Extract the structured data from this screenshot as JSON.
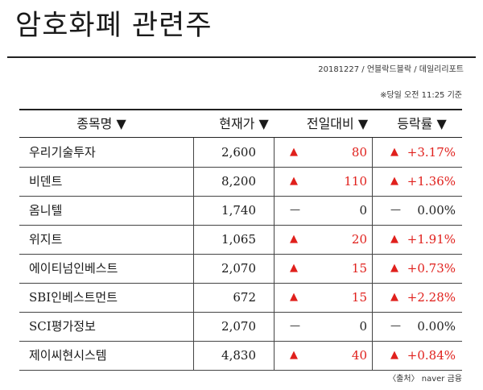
{
  "title": "암호화폐 관련주",
  "byline": "20181227 / 언블락드블락 / 데일리리포트",
  "timestamp": "※당일 오전 11:25 기준",
  "columns": [
    "종목명 ▼",
    "현재가 ▼",
    "전일대비 ▼",
    "등락률 ▼"
  ],
  "colors": {
    "up": "#e0201c",
    "flat": "#222222"
  },
  "rows": [
    {
      "name": "우리기술투자",
      "price": "2,600",
      "dir": "up",
      "arrow": "▲",
      "change": "80",
      "rate": "+3.17%"
    },
    {
      "name": "비덴트",
      "price": "8,200",
      "dir": "up",
      "arrow": "▲",
      "change": "110",
      "rate": "+1.36%"
    },
    {
      "name": "옴니텔",
      "price": "1,740",
      "dir": "flat",
      "arrow": "—",
      "change": "0",
      "rate": "0.00%"
    },
    {
      "name": "위지트",
      "price": "1,065",
      "dir": "up",
      "arrow": "▲",
      "change": "20",
      "rate": "+1.91%"
    },
    {
      "name": "에이티넘인베스트",
      "price": "2,070",
      "dir": "up",
      "arrow": "▲",
      "change": "15",
      "rate": "+0.73%"
    },
    {
      "name": "SBI인베스트먼트",
      "price": "672",
      "dir": "up",
      "arrow": "▲",
      "change": "15",
      "rate": "+2.28%"
    },
    {
      "name": "SCI평가정보",
      "price": "2,070",
      "dir": "flat",
      "arrow": "—",
      "change": "0",
      "rate": "0.00%"
    },
    {
      "name": "제이씨현시스템",
      "price": "4,830",
      "dir": "up",
      "arrow": "▲",
      "change": "40",
      "rate": "+0.84%"
    }
  ],
  "source": "〈출처〉 naver 금융"
}
